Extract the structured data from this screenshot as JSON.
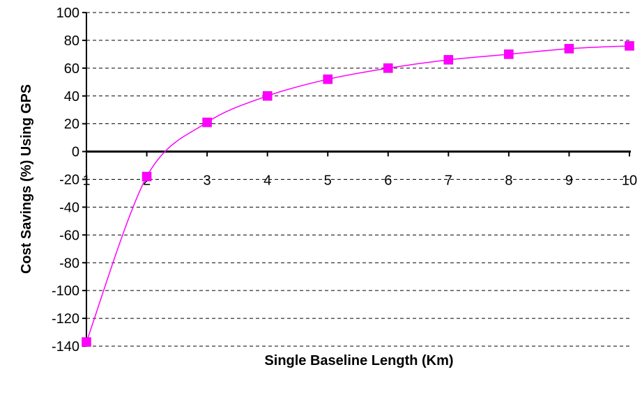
{
  "chart_data": {
    "type": "line",
    "title": "",
    "xlabel": "Single Baseline Length (Km)",
    "ylabel": "Cost Savings (%) Using GPS",
    "x": [
      1,
      2,
      3,
      4,
      5,
      6,
      7,
      8,
      9,
      10
    ],
    "series": [
      {
        "values": [
          -137,
          -18,
          21,
          40,
          52,
          60,
          66,
          70,
          74,
          76
        ]
      }
    ],
    "xlim": [
      1,
      10
    ],
    "ylim": [
      -140,
      100
    ],
    "x_ticks": [
      "1",
      "2",
      "3",
      "4",
      "5",
      "6",
      "7",
      "8",
      "9",
      "10"
    ],
    "y_ticks": [
      "100",
      "80",
      "60",
      "40",
      "20",
      "0",
      "-20",
      "-40",
      "-60",
      "-80",
      "-100",
      "-120",
      "-140"
    ],
    "grid": "horizontal dashed",
    "legend": "none",
    "marker": "square",
    "colors": {
      "series": "#ff00ff",
      "axis": "#000000",
      "grid": "#000000"
    }
  }
}
